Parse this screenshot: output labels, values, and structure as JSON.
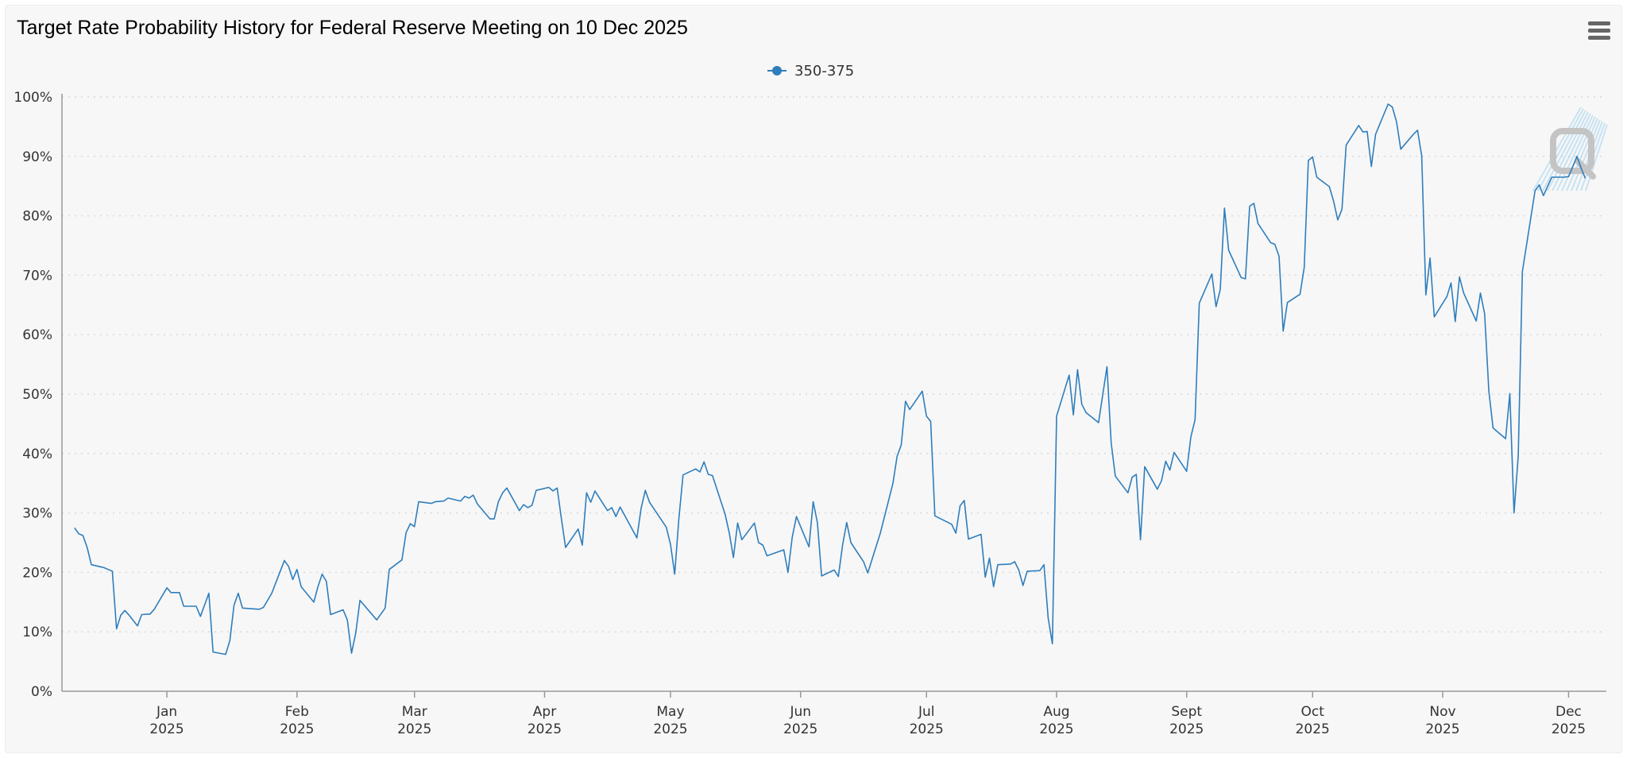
{
  "header": {
    "title": "Target Rate Probability History for Federal Reserve Meeting on 10 Dec 2025",
    "menu_icon": "hamburger-menu-icon"
  },
  "colors": {
    "series": "#2f7ebc",
    "grid": "#d9d9d9",
    "axis": "#999999",
    "background": "#f7f7f7"
  },
  "chart_data": {
    "type": "line",
    "title": "Target Rate Probability History for Federal Reserve Meeting on 10 Dec 2025",
    "xlabel": "",
    "ylabel": "",
    "ylim": [
      0,
      100
    ],
    "y_ticks": [
      "0%",
      "10%",
      "20%",
      "30%",
      "40%",
      "50%",
      "60%",
      "70%",
      "80%",
      "90%",
      "100%"
    ],
    "y_tick_values": [
      0,
      10,
      20,
      30,
      40,
      50,
      60,
      70,
      80,
      90,
      100
    ],
    "x_range": [
      -25,
      343
    ],
    "x_ticks": [
      {
        "month": "Jan",
        "year": "2025",
        "day": 0
      },
      {
        "month": "Feb",
        "year": "2025",
        "day": 31
      },
      {
        "month": "Mar",
        "year": "2025",
        "day": 59
      },
      {
        "month": "Apr",
        "year": "2025",
        "day": 90
      },
      {
        "month": "May",
        "year": "2025",
        "day": 120
      },
      {
        "month": "Jun",
        "year": "2025",
        "day": 151
      },
      {
        "month": "Jul",
        "year": "2025",
        "day": 181
      },
      {
        "month": "Aug",
        "year": "2025",
        "day": 212
      },
      {
        "month": "Sept",
        "year": "2025",
        "day": 243
      },
      {
        "month": "Oct",
        "year": "2025",
        "day": 273
      },
      {
        "month": "Nov",
        "year": "2025",
        "day": 304
      },
      {
        "month": "Dec",
        "year": "2025",
        "day": 334
      }
    ],
    "grid": true,
    "legend_position": "top-center",
    "series": [
      {
        "name": "350-375",
        "x_unit": "days since 1 Jan 2025",
        "points": [
          [
            -22,
            27.5
          ],
          [
            -21,
            26.5
          ],
          [
            -20,
            26.2
          ],
          [
            -19,
            24.2
          ],
          [
            -18,
            21.3
          ],
          [
            -15,
            20.8
          ],
          [
            -14,
            20.5
          ],
          [
            -13,
            20.2
          ],
          [
            -12,
            10.5
          ],
          [
            -11,
            12.8
          ],
          [
            -10,
            13.6
          ],
          [
            -9,
            12.8
          ],
          [
            -7,
            11.0
          ],
          [
            -6,
            12.9
          ],
          [
            -4,
            13.0
          ],
          [
            -3,
            13.8
          ],
          [
            -1,
            16.2
          ],
          [
            0,
            17.4
          ],
          [
            1,
            16.6
          ],
          [
            3,
            16.6
          ],
          [
            4,
            14.3
          ],
          [
            7,
            14.3
          ],
          [
            8,
            12.6
          ],
          [
            10,
            16.5
          ],
          [
            11,
            6.6
          ],
          [
            14,
            6.2
          ],
          [
            15,
            8.5
          ],
          [
            16,
            14.5
          ],
          [
            17,
            16.5
          ],
          [
            18,
            14.0
          ],
          [
            22,
            13.8
          ],
          [
            23,
            14.1
          ],
          [
            25,
            16.5
          ],
          [
            28,
            22.0
          ],
          [
            29,
            21.0
          ],
          [
            30,
            18.8
          ],
          [
            31,
            20.5
          ],
          [
            32,
            17.6
          ],
          [
            35,
            15.0
          ],
          [
            36,
            17.6
          ],
          [
            37,
            19.7
          ],
          [
            38,
            18.5
          ],
          [
            39,
            12.9
          ],
          [
            42,
            13.7
          ],
          [
            43,
            12.0
          ],
          [
            44,
            6.4
          ],
          [
            45,
            9.8
          ],
          [
            46,
            15.3
          ],
          [
            50,
            12.0
          ],
          [
            52,
            14.0
          ],
          [
            53,
            20.5
          ],
          [
            56,
            22.1
          ],
          [
            57,
            26.7
          ],
          [
            58,
            28.2
          ],
          [
            59,
            27.7
          ],
          [
            60,
            31.9
          ],
          [
            63,
            31.6
          ],
          [
            64,
            31.9
          ],
          [
            66,
            32.0
          ],
          [
            67,
            32.5
          ],
          [
            70,
            32.0
          ],
          [
            71,
            32.8
          ],
          [
            72,
            32.5
          ],
          [
            73,
            33.0
          ],
          [
            74,
            31.5
          ],
          [
            77,
            29.0
          ],
          [
            78,
            29.0
          ],
          [
            79,
            31.9
          ],
          [
            80,
            33.4
          ],
          [
            81,
            34.2
          ],
          [
            84,
            30.4
          ],
          [
            85,
            31.4
          ],
          [
            86,
            30.9
          ],
          [
            87,
            31.3
          ],
          [
            88,
            33.8
          ],
          [
            91,
            34.3
          ],
          [
            92,
            33.7
          ],
          [
            93,
            34.2
          ],
          [
            94,
            29.1
          ],
          [
            95,
            24.2
          ],
          [
            98,
            27.3
          ],
          [
            99,
            24.6
          ],
          [
            100,
            33.4
          ],
          [
            101,
            31.8
          ],
          [
            102,
            33.7
          ],
          [
            105,
            30.4
          ],
          [
            106,
            30.9
          ],
          [
            107,
            29.4
          ],
          [
            108,
            31.0
          ],
          [
            112,
            25.8
          ],
          [
            113,
            30.8
          ],
          [
            114,
            33.8
          ],
          [
            115,
            31.8
          ],
          [
            119,
            27.6
          ],
          [
            120,
            24.7
          ],
          [
            121,
            19.7
          ],
          [
            122,
            29.0
          ],
          [
            123,
            36.4
          ],
          [
            126,
            37.4
          ],
          [
            127,
            36.9
          ],
          [
            128,
            38.6
          ],
          [
            129,
            36.5
          ],
          [
            130,
            36.3
          ],
          [
            133,
            29.8
          ],
          [
            134,
            26.7
          ],
          [
            135,
            22.5
          ],
          [
            136,
            28.3
          ],
          [
            137,
            25.5
          ],
          [
            140,
            28.3
          ],
          [
            141,
            25.0
          ],
          [
            142,
            24.6
          ],
          [
            143,
            22.8
          ],
          [
            147,
            23.8
          ],
          [
            148,
            20.0
          ],
          [
            149,
            25.9
          ],
          [
            150,
            29.4
          ],
          [
            153,
            24.3
          ],
          [
            154,
            31.9
          ],
          [
            155,
            28.4
          ],
          [
            156,
            19.4
          ],
          [
            159,
            20.4
          ],
          [
            160,
            19.3
          ],
          [
            161,
            24.6
          ],
          [
            162,
            28.4
          ],
          [
            163,
            25.0
          ],
          [
            166,
            21.8
          ],
          [
            167,
            19.9
          ],
          [
            170,
            26.6
          ],
          [
            173,
            35.0
          ],
          [
            174,
            39.5
          ],
          [
            175,
            41.5
          ],
          [
            176,
            48.8
          ],
          [
            177,
            47.4
          ],
          [
            180,
            50.5
          ],
          [
            181,
            46.3
          ],
          [
            182,
            45.4
          ],
          [
            183,
            29.5
          ],
          [
            187,
            28.1
          ],
          [
            188,
            26.6
          ],
          [
            189,
            31.2
          ],
          [
            190,
            32.1
          ],
          [
            191,
            25.6
          ],
          [
            194,
            26.4
          ],
          [
            195,
            19.2
          ],
          [
            196,
            22.4
          ],
          [
            197,
            17.6
          ],
          [
            198,
            21.3
          ],
          [
            201,
            21.4
          ],
          [
            202,
            21.8
          ],
          [
            203,
            20.4
          ],
          [
            204,
            17.8
          ],
          [
            205,
            20.2
          ],
          [
            208,
            20.3
          ],
          [
            209,
            21.3
          ],
          [
            210,
            12.3
          ],
          [
            211,
            8.0
          ],
          [
            212,
            46.3
          ],
          [
            215,
            53.2
          ],
          [
            216,
            46.5
          ],
          [
            217,
            54.1
          ],
          [
            218,
            48.3
          ],
          [
            219,
            46.9
          ],
          [
            222,
            45.2
          ],
          [
            223,
            49.9
          ],
          [
            224,
            54.6
          ],
          [
            225,
            41.8
          ],
          [
            226,
            36.2
          ],
          [
            229,
            33.4
          ],
          [
            230,
            36.0
          ],
          [
            231,
            36.5
          ],
          [
            232,
            25.5
          ],
          [
            233,
            37.8
          ],
          [
            236,
            34.0
          ],
          [
            237,
            35.4
          ],
          [
            238,
            38.7
          ],
          [
            239,
            37.2
          ],
          [
            240,
            40.2
          ],
          [
            243,
            37.0
          ],
          [
            244,
            42.8
          ],
          [
            245,
            45.7
          ],
          [
            246,
            65.3
          ],
          [
            249,
            70.2
          ],
          [
            250,
            64.7
          ],
          [
            251,
            67.6
          ],
          [
            252,
            81.3
          ],
          [
            253,
            74.2
          ],
          [
            256,
            69.6
          ],
          [
            257,
            69.4
          ],
          [
            258,
            81.6
          ],
          [
            259,
            82.1
          ],
          [
            260,
            78.7
          ],
          [
            263,
            75.5
          ],
          [
            264,
            75.2
          ],
          [
            265,
            73.2
          ],
          [
            266,
            60.6
          ],
          [
            267,
            65.4
          ],
          [
            270,
            66.8
          ],
          [
            271,
            71.3
          ],
          [
            272,
            89.3
          ],
          [
            273,
            89.9
          ],
          [
            274,
            86.5
          ],
          [
            277,
            84.9
          ],
          [
            278,
            82.5
          ],
          [
            279,
            79.3
          ],
          [
            280,
            81.1
          ],
          [
            281,
            91.9
          ],
          [
            284,
            95.2
          ],
          [
            285,
            94.1
          ],
          [
            286,
            94.2
          ],
          [
            287,
            88.3
          ],
          [
            288,
            93.7
          ],
          [
            291,
            98.8
          ],
          [
            292,
            98.3
          ],
          [
            293,
            95.8
          ],
          [
            294,
            91.2
          ],
          [
            297,
            93.7
          ],
          [
            298,
            94.4
          ],
          [
            299,
            90.1
          ],
          [
            300,
            66.7
          ],
          [
            301,
            72.9
          ],
          [
            302,
            63.0
          ],
          [
            305,
            66.4
          ],
          [
            306,
            68.7
          ],
          [
            307,
            62.2
          ],
          [
            308,
            69.7
          ],
          [
            309,
            67.0
          ],
          [
            312,
            62.3
          ],
          [
            313,
            67.0
          ],
          [
            314,
            63.5
          ],
          [
            315,
            50.5
          ],
          [
            316,
            44.3
          ],
          [
            319,
            42.5
          ],
          [
            320,
            50.1
          ],
          [
            321,
            30.0
          ],
          [
            322,
            39.6
          ],
          [
            323,
            70.6
          ],
          [
            326,
            84.2
          ],
          [
            327,
            85.2
          ],
          [
            328,
            83.4
          ],
          [
            330,
            86.5
          ],
          [
            333,
            86.5
          ],
          [
            334,
            86.6
          ],
          [
            336,
            90.0
          ],
          [
            337,
            88.0
          ],
          [
            338,
            86.3
          ]
        ]
      }
    ]
  }
}
